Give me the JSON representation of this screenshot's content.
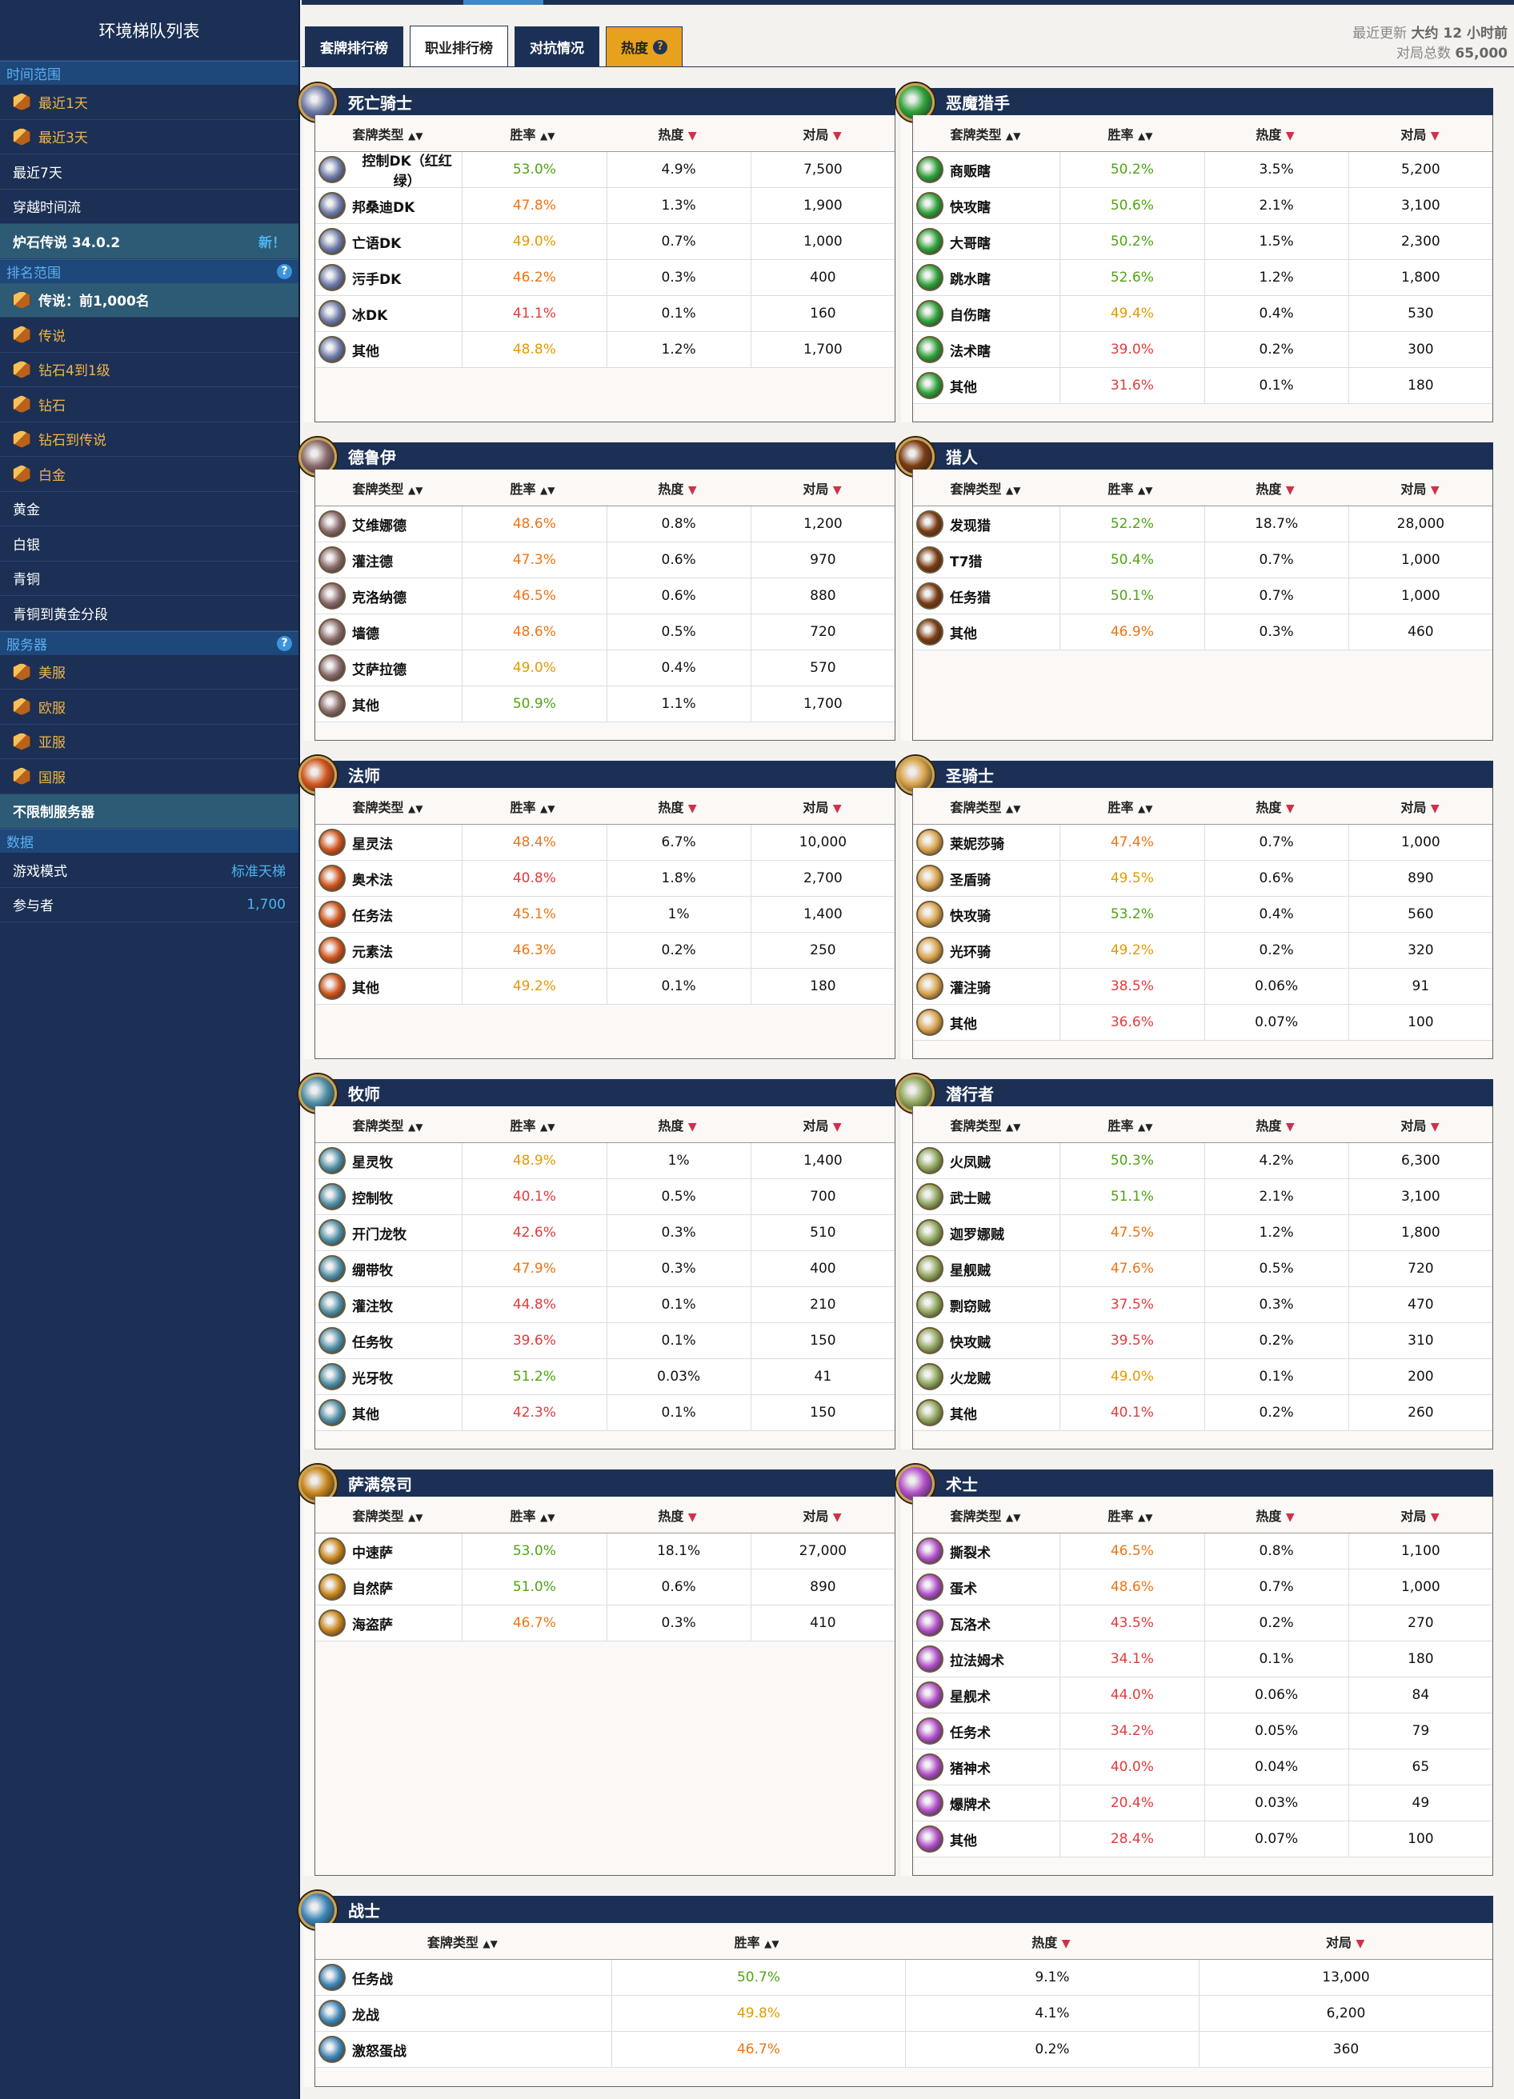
{
  "sidebar": {
    "title": "环境梯队列表",
    "sections": {
      "time": "时间范围",
      "rank": "排名范围",
      "server": "服务器",
      "data": "数据"
    },
    "time_items": [
      {
        "label": "最近1天",
        "style": "orange",
        "icon": true
      },
      {
        "label": "最近3天",
        "style": "orange",
        "icon": true
      },
      {
        "label": "最近7天",
        "style": "white",
        "icon": false
      },
      {
        "label": "穿越时间流",
        "style": "white",
        "icon": false
      },
      {
        "label": "炉石传说 34.0.2",
        "style": "active",
        "icon": false,
        "ext": "新！"
      }
    ],
    "rank_items": [
      {
        "label": "传说：前1,000名",
        "style": "active",
        "icon": true
      },
      {
        "label": "传说",
        "style": "orange",
        "icon": true
      },
      {
        "label": "钻石4到1级",
        "style": "orange",
        "icon": true
      },
      {
        "label": "钻石",
        "style": "orange",
        "icon": true
      },
      {
        "label": "钻石到传说",
        "style": "orange",
        "icon": true
      },
      {
        "label": "白金",
        "style": "orange",
        "icon": true
      },
      {
        "label": "黄金",
        "style": "white",
        "icon": false
      },
      {
        "label": "白银",
        "style": "white",
        "icon": false
      },
      {
        "label": "青铜",
        "style": "white",
        "icon": false
      },
      {
        "label": "青铜到黄金分段",
        "style": "white",
        "icon": false
      }
    ],
    "server_items": [
      {
        "label": "美服",
        "style": "orange",
        "icon": true
      },
      {
        "label": "欧服",
        "style": "orange",
        "icon": true
      },
      {
        "label": "亚服",
        "style": "orange",
        "icon": true
      },
      {
        "label": "国服",
        "style": "orange",
        "icon": true
      },
      {
        "label": "不限制服务器",
        "style": "active",
        "icon": false
      }
    ],
    "data_items": [
      {
        "label": "游戏模式",
        "style": "white",
        "icon": false,
        "ext": "标准天梯"
      },
      {
        "label": "参与者",
        "style": "white",
        "icon": false,
        "ext": "1,700"
      }
    ]
  },
  "tabs": [
    {
      "label": "套牌排行榜"
    },
    {
      "label": "职业排行榜",
      "active": true
    },
    {
      "label": "对抗情况"
    },
    {
      "label": "热度",
      "hot": true,
      "help": "?"
    }
  ],
  "meta": {
    "updated_label": "最近更新",
    "updated_value": "大约 12 小时前",
    "total_label": "对局总数",
    "total_value": "65,000"
  },
  "columns": {
    "archetype": "套牌类型",
    "winrate": "胜率",
    "popularity": "热度",
    "games": "对局",
    "sort_both": "▲▼",
    "sort_down": "▼"
  },
  "colors": {
    "green": "#4ea511",
    "yellow": "#e39a00",
    "orange": "#ef7413",
    "red": "#e43a3a",
    "header": "#1b3054"
  },
  "classes": [
    {
      "name": "死亡骑士",
      "icon": "death-knight-icon",
      "color": "#6d7aa8",
      "rows": [
        [
          "控制DK（红红绿）",
          "53.0%",
          "g",
          "4.9%",
          "7,500"
        ],
        [
          "邦桑迪DK",
          "47.8%",
          "o",
          "1.3%",
          "1,900"
        ],
        [
          "亡语DK",
          "49.0%",
          "y",
          "0.7%",
          "1,000"
        ],
        [
          "污手DK",
          "46.2%",
          "o",
          "0.3%",
          "400"
        ],
        [
          "冰DK",
          "41.1%",
          "r",
          "0.1%",
          "160"
        ],
        [
          "其他",
          "48.8%",
          "y",
          "1.2%",
          "1,700"
        ]
      ]
    },
    {
      "name": "恶魔猎手",
      "icon": "demon-hunter-icon",
      "color": "#2fa23a",
      "rows": [
        [
          "商贩瞎",
          "50.2%",
          "g",
          "3.5%",
          "5,200"
        ],
        [
          "快攻瞎",
          "50.6%",
          "g",
          "2.1%",
          "3,100"
        ],
        [
          "大哥瞎",
          "50.2%",
          "g",
          "1.5%",
          "2,300"
        ],
        [
          "跳水瞎",
          "52.6%",
          "g",
          "1.2%",
          "1,800"
        ],
        [
          "自伤瞎",
          "49.4%",
          "y",
          "0.4%",
          "530"
        ],
        [
          "法术瞎",
          "39.0%",
          "r",
          "0.2%",
          "300"
        ],
        [
          "其他",
          "31.6%",
          "r",
          "0.1%",
          "180"
        ]
      ]
    },
    {
      "name": "德鲁伊",
      "icon": "druid-icon",
      "color": "#8a6a6a",
      "rows": [
        [
          "艾维娜德",
          "48.6%",
          "o",
          "0.8%",
          "1,200"
        ],
        [
          "灌注德",
          "47.3%",
          "o",
          "0.6%",
          "970"
        ],
        [
          "克洛纳德",
          "46.5%",
          "o",
          "0.6%",
          "880"
        ],
        [
          "墙德",
          "48.6%",
          "o",
          "0.5%",
          "720"
        ],
        [
          "艾萨拉德",
          "49.0%",
          "y",
          "0.4%",
          "570"
        ],
        [
          "其他",
          "50.9%",
          "g",
          "1.1%",
          "1,700"
        ]
      ]
    },
    {
      "name": "猎人",
      "icon": "hunter-icon",
      "color": "#7a3b12",
      "rows": [
        [
          "发现猎",
          "52.2%",
          "g",
          "18.7%",
          "28,000"
        ],
        [
          "T7猎",
          "50.4%",
          "g",
          "0.7%",
          "1,000"
        ],
        [
          "任务猎",
          "50.1%",
          "g",
          "0.7%",
          "1,000"
        ],
        [
          "其他",
          "46.9%",
          "o",
          "0.3%",
          "460"
        ]
      ]
    },
    {
      "name": "法师",
      "icon": "mage-icon",
      "color": "#d2541c",
      "rows": [
        [
          "星灵法",
          "48.4%",
          "o",
          "6.7%",
          "10,000"
        ],
        [
          "奥术法",
          "40.8%",
          "r",
          "1.8%",
          "2,700"
        ],
        [
          "任务法",
          "45.1%",
          "o",
          "1%",
          "1,400"
        ],
        [
          "元素法",
          "46.3%",
          "o",
          "0.2%",
          "250"
        ],
        [
          "其他",
          "49.2%",
          "y",
          "0.1%",
          "180"
        ]
      ]
    },
    {
      "name": "圣骑士",
      "icon": "paladin-icon",
      "color": "#d9a24a",
      "rows": [
        [
          "莱妮莎骑",
          "47.4%",
          "o",
          "0.7%",
          "1,000"
        ],
        [
          "圣盾骑",
          "49.5%",
          "y",
          "0.6%",
          "890"
        ],
        [
          "快攻骑",
          "53.2%",
          "g",
          "0.4%",
          "560"
        ],
        [
          "光环骑",
          "49.2%",
          "y",
          "0.2%",
          "320"
        ],
        [
          "灌注骑",
          "38.5%",
          "r",
          "0.06%",
          "91"
        ],
        [
          "其他",
          "36.6%",
          "r",
          "0.07%",
          "100"
        ]
      ]
    },
    {
      "name": "牧师",
      "icon": "priest-icon",
      "color": "#4f8fa6",
      "rows": [
        [
          "星灵牧",
          "48.9%",
          "y",
          "1%",
          "1,400"
        ],
        [
          "控制牧",
          "40.1%",
          "r",
          "0.5%",
          "700"
        ],
        [
          "开门龙牧",
          "42.6%",
          "r",
          "0.3%",
          "510"
        ],
        [
          "绷带牧",
          "47.9%",
          "o",
          "0.3%",
          "400"
        ],
        [
          "灌注牧",
          "44.8%",
          "r",
          "0.1%",
          "210"
        ],
        [
          "任务牧",
          "39.6%",
          "r",
          "0.1%",
          "150"
        ],
        [
          "光牙牧",
          "51.2%",
          "g",
          "0.03%",
          "41"
        ],
        [
          "其他",
          "42.3%",
          "r",
          "0.1%",
          "150"
        ]
      ]
    },
    {
      "name": "潜行者",
      "icon": "rogue-icon",
      "color": "#8ea55a",
      "rows": [
        [
          "火凤贼",
          "50.3%",
          "g",
          "4.2%",
          "6,300"
        ],
        [
          "武士贼",
          "51.1%",
          "g",
          "2.1%",
          "3,100"
        ],
        [
          "迦罗娜贼",
          "47.5%",
          "o",
          "1.2%",
          "1,800"
        ],
        [
          "星舰贼",
          "47.6%",
          "o",
          "0.5%",
          "720"
        ],
        [
          "剽窃贼",
          "37.5%",
          "r",
          "0.3%",
          "470"
        ],
        [
          "快攻贼",
          "39.5%",
          "r",
          "0.2%",
          "310"
        ],
        [
          "火龙贼",
          "49.0%",
          "y",
          "0.1%",
          "200"
        ],
        [
          "其他",
          "40.1%",
          "r",
          "0.2%",
          "260"
        ]
      ]
    },
    {
      "name": "萨满祭司",
      "icon": "shaman-icon",
      "color": "#c8861a",
      "rows": [
        [
          "中速萨",
          "53.0%",
          "g",
          "18.1%",
          "27,000"
        ],
        [
          "自然萨",
          "51.0%",
          "g",
          "0.6%",
          "890"
        ],
        [
          "海盗萨",
          "46.7%",
          "o",
          "0.3%",
          "410"
        ]
      ]
    },
    {
      "name": "术士",
      "icon": "warlock-icon",
      "color": "#b04fc8",
      "rows": [
        [
          "撕裂术",
          "46.5%",
          "o",
          "0.8%",
          "1,100"
        ],
        [
          "蛋术",
          "48.6%",
          "o",
          "0.7%",
          "1,000"
        ],
        [
          "瓦洛术",
          "43.5%",
          "r",
          "0.2%",
          "270"
        ],
        [
          "拉法姆术",
          "34.1%",
          "r",
          "0.1%",
          "180"
        ],
        [
          "星舰术",
          "44.0%",
          "r",
          "0.06%",
          "84"
        ],
        [
          "任务术",
          "34.2%",
          "r",
          "0.05%",
          "79"
        ],
        [
          "猪神术",
          "40.0%",
          "r",
          "0.04%",
          "65"
        ],
        [
          "爆牌术",
          "20.4%",
          "r",
          "0.03%",
          "49"
        ],
        [
          "其他",
          "28.4%",
          "r",
          "0.07%",
          "100"
        ]
      ]
    },
    {
      "name": "战士",
      "icon": "warrior-icon",
      "color": "#3f86b8",
      "rows": [
        [
          "任务战",
          "50.7%",
          "g",
          "9.1%",
          "13,000"
        ],
        [
          "龙战",
          "49.8%",
          "y",
          "4.1%",
          "6,200"
        ],
        [
          "激怒蛋战",
          "46.7%",
          "o",
          "0.2%",
          "360"
        ]
      ]
    }
  ]
}
